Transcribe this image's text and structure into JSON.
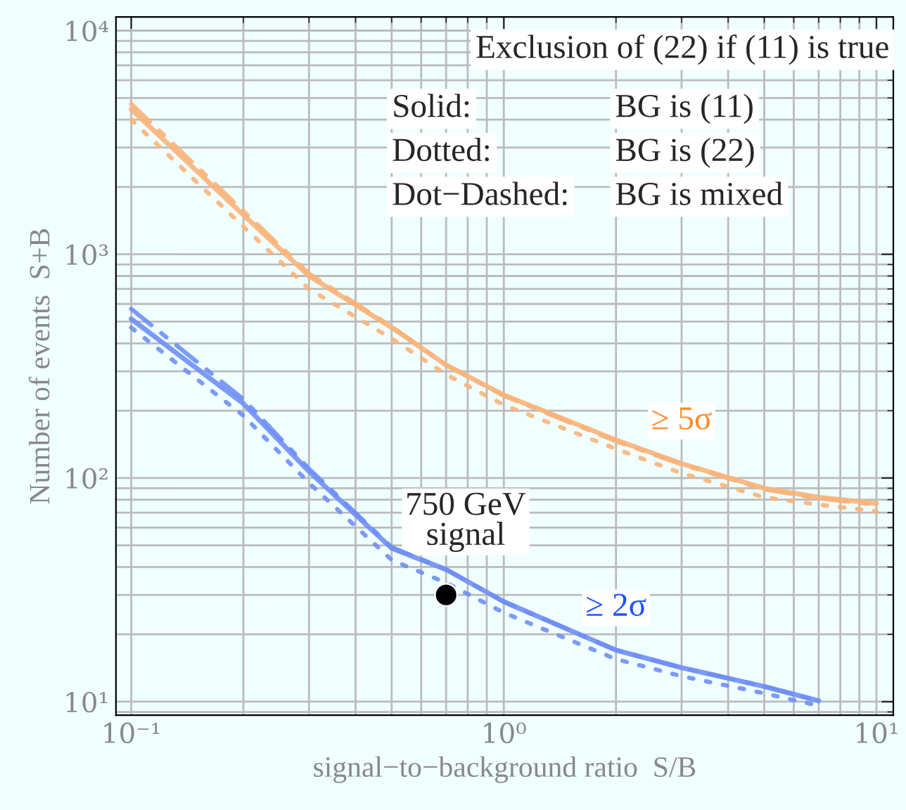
{
  "chart_data": {
    "type": "line",
    "xlabel": "signal−to−background ratio  S/B",
    "ylabel": "Number of events  S+B",
    "log": "xy",
    "grid": true,
    "xlim": [
      0.091,
      11.1
    ],
    "ylim": [
      8.7,
      11500
    ],
    "xticks": [
      {
        "value": 0.1,
        "label": "10⁻¹"
      },
      {
        "value": 1,
        "label": "10⁰"
      },
      {
        "value": 10,
        "label": "10¹"
      }
    ],
    "yticks": [
      {
        "value": 10,
        "label": "10¹"
      },
      {
        "value": 100,
        "label": "10²"
      },
      {
        "value": 1000,
        "label": "10³"
      },
      {
        "value": 10000,
        "label": "10⁴"
      }
    ],
    "series": [
      {
        "name": "≥ 5σ",
        "color": "#f9b47a",
        "line_style": "solid",
        "x": [
          0.1,
          0.2,
          0.3,
          0.5,
          0.7,
          1,
          2,
          3,
          5,
          7,
          10
        ],
        "values": [
          4450,
          1500,
          800,
          471,
          320,
          235,
          148,
          116,
          90,
          82,
          77
        ]
      },
      {
        "color": "#f9b47a",
        "line_style": "dashed",
        "x": [
          0.1,
          0.2,
          0.3,
          0.5,
          0.7,
          1,
          2,
          3,
          5,
          7,
          10
        ],
        "values": [
          4700,
          1560,
          820,
          475,
          320,
          233,
          146,
          115,
          89,
          81,
          76
        ]
      },
      {
        "color": "#f9b47a",
        "line_style": "dotted",
        "x": [
          0.1,
          0.2,
          0.3,
          0.5,
          0.7,
          1,
          2,
          3,
          5,
          7,
          10
        ],
        "values": [
          4000,
          1330,
          700,
          420,
          290,
          212,
          135,
          105,
          82,
          76,
          71
        ]
      },
      {
        "name": "≥ 2σ",
        "color": "#6f8ff5",
        "line_style": "solid",
        "x": [
          0.1,
          0.2,
          0.3,
          0.5,
          0.7,
          1,
          2,
          3,
          5,
          7
        ],
        "values": [
          514,
          215,
          107,
          48.5,
          39,
          28,
          17,
          14.2,
          11.7,
          10.1
        ]
      },
      {
        "color": "#6f8ff5",
        "line_style": "dashed",
        "x": [
          0.1,
          0.2,
          0.3,
          0.5,
          0.7,
          1,
          2,
          3,
          5,
          7
        ],
        "values": [
          570,
          225,
          110,
          49,
          39,
          28,
          17,
          14.2,
          11.7,
          10.1
        ]
      },
      {
        "color": "#6f8ff5",
        "line_style": "dotted",
        "x": [
          0.1,
          0.2,
          0.3,
          0.5,
          0.7,
          1,
          2,
          3,
          5,
          7
        ],
        "values": [
          470,
          190,
          95,
          43,
          34,
          25,
          15.5,
          13,
          10.9,
          9.6
        ]
      },
      {
        "type": "scatter",
        "marker": "circle",
        "color": "#000000",
        "x": [
          0.7
        ],
        "values": [
          30
        ]
      }
    ],
    "annotations": [
      "Exclusion of (22) if (11) is true",
      "Solid:",
      "BG is (11)",
      "Dotted:",
      "BG is (22)",
      "Dot−Dashed:",
      "BG is mixed",
      {
        "text": "750 GeV\nsignal",
        "x": 0.7,
        "y": 30
      }
    ]
  }
}
